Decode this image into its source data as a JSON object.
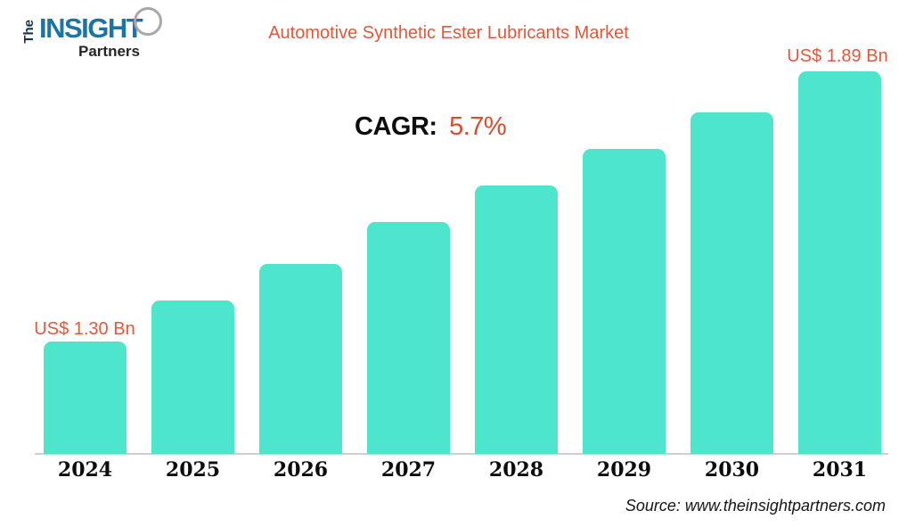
{
  "logo": {
    "the": "The",
    "insight": "INSIGHT",
    "partners": "Partners"
  },
  "header": {
    "title": "Automotive Synthetic Ester Lubricants Market"
  },
  "cagr": {
    "label": "CAGR:",
    "value": "5.7%"
  },
  "annotations": {
    "first_bar_label": "US$ 1.30 Bn",
    "last_bar_label": "US$ 1.89 Bn"
  },
  "footer": {
    "source": "Source: www.theinsightpartners.com"
  },
  "colors": {
    "accent_orange": "#E2583B",
    "cagr_orange": "#D94C2E",
    "bar_teal": "#4DE5CC",
    "logo_blue": "#1C73A6",
    "logo_dark": "#16324C",
    "axis_gray": "#CFCFCF",
    "text_dark": "#0D0D0D"
  },
  "chart_data": {
    "type": "bar",
    "title": "Automotive Synthetic Ester Lubricants Market",
    "categories": [
      "2024",
      "2025",
      "2026",
      "2027",
      "2028",
      "2029",
      "2030",
      "2031"
    ],
    "values": [
      1.3,
      1.39,
      1.47,
      1.56,
      1.64,
      1.72,
      1.8,
      1.89
    ],
    "unit": "US$ Bn",
    "value_labels": {
      "2024": "US$ 1.30 Bn",
      "2031": "US$ 1.89 Bn"
    },
    "cagr": "5.7%",
    "bar_color": "#4DE5CC",
    "xlabel": "",
    "ylabel": "",
    "legend": false,
    "grid": false,
    "baseline_starts_at_zero": false
  }
}
